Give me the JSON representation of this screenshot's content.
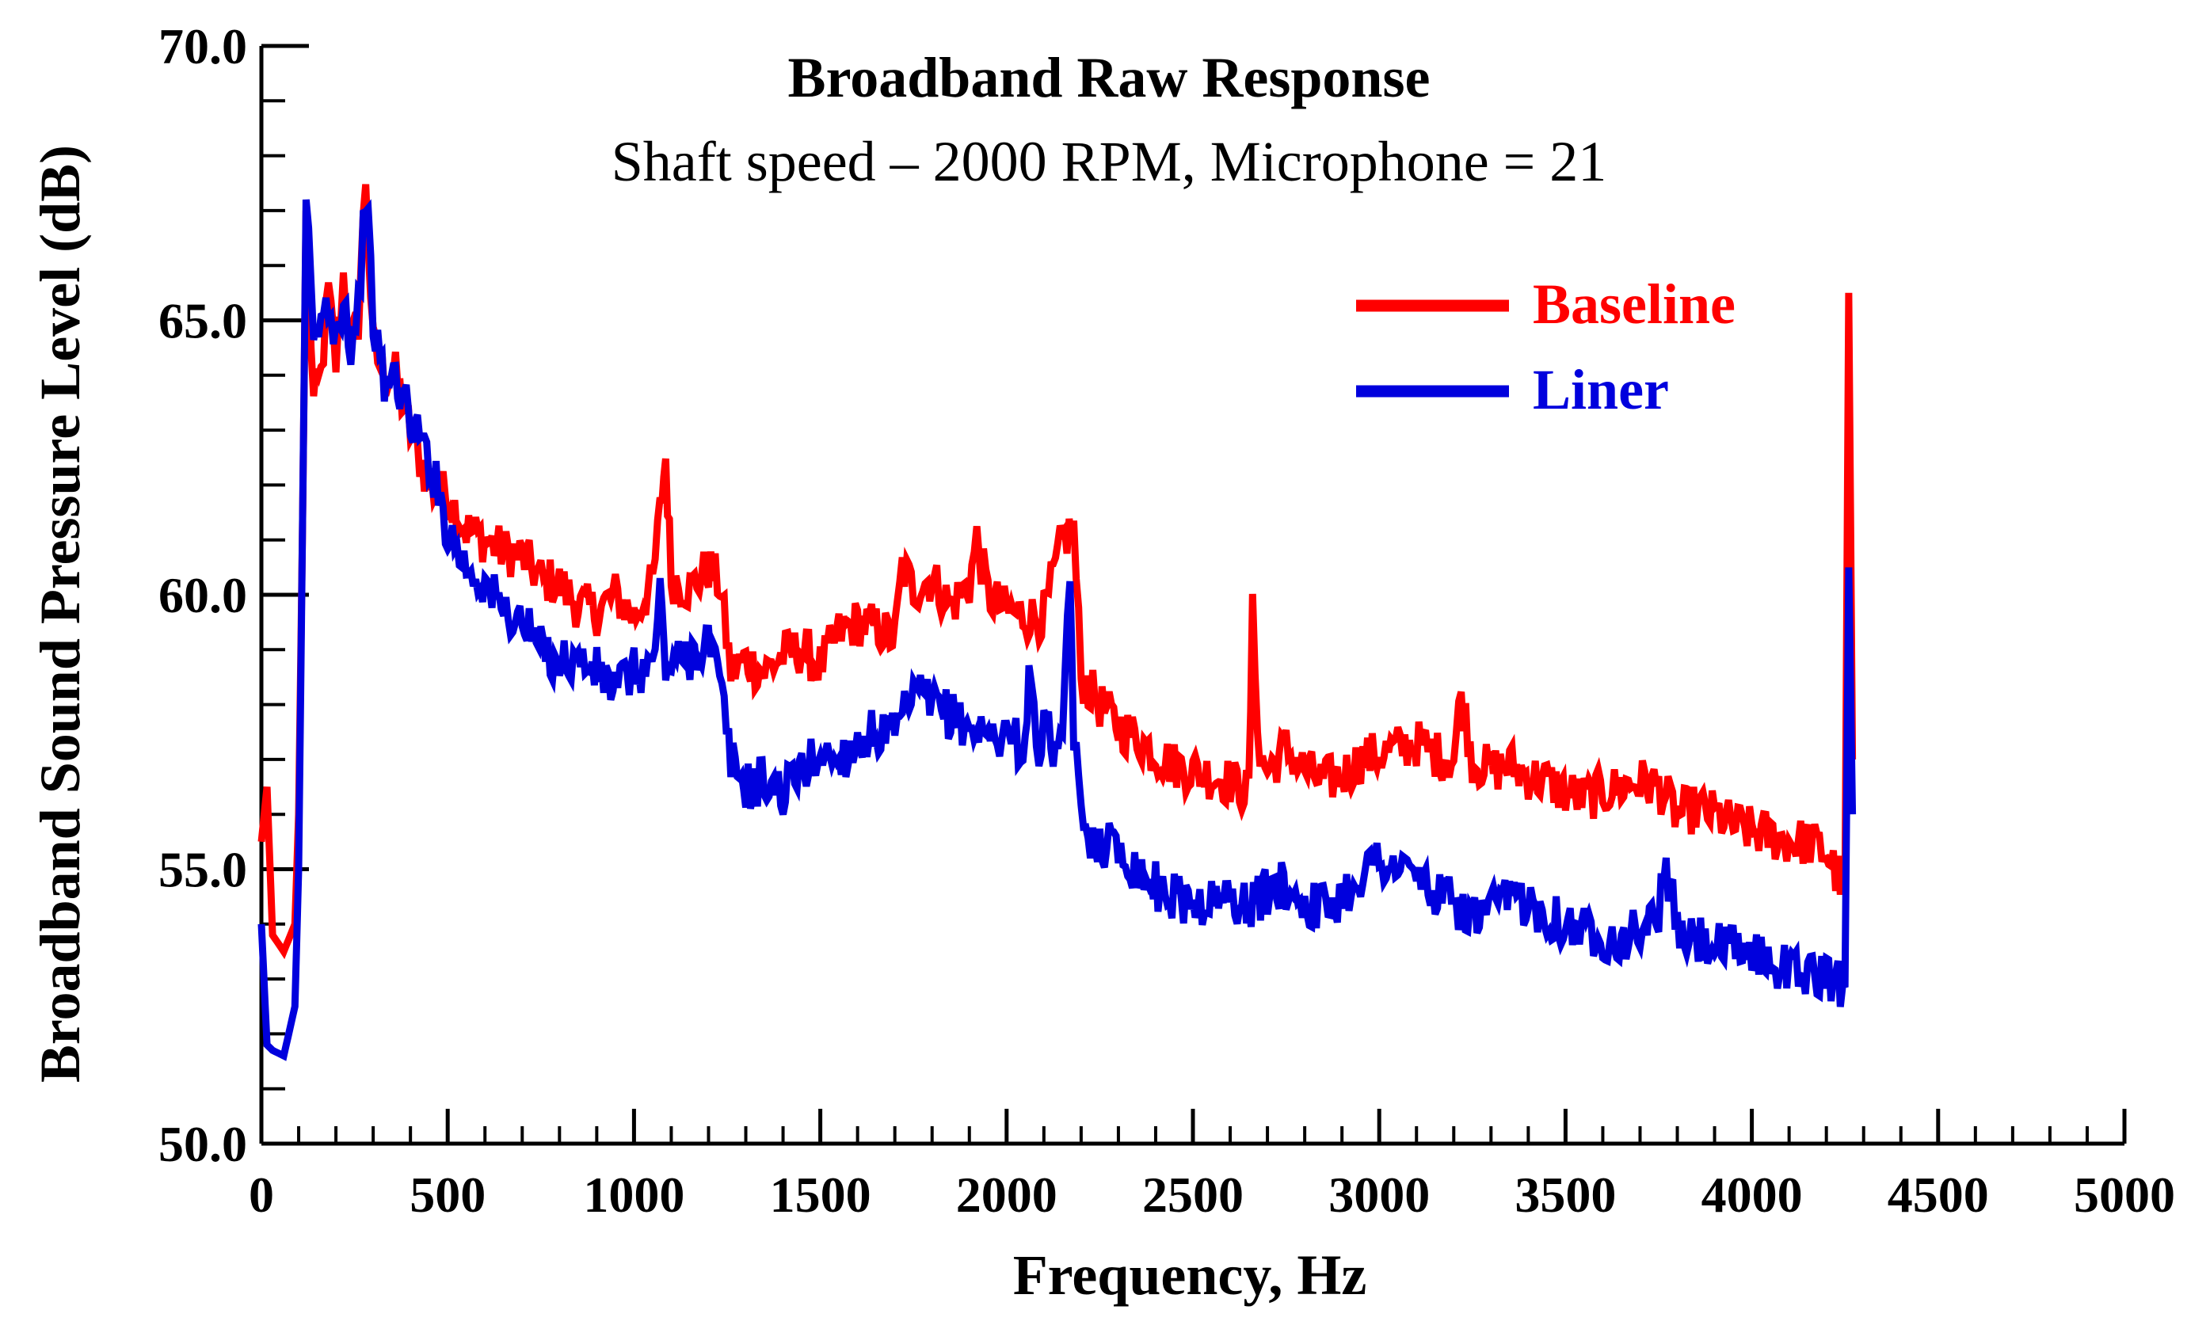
{
  "chart_data": {
    "type": "line",
    "title": "Broadband Raw Response",
    "subtitle": "Shaft speed – 2000 RPM, Microphone = 21",
    "xlabel": "Frequency, Hz",
    "ylabel": "Broadband Sound Pressure Level (dB)",
    "xlim": [
      0,
      5000
    ],
    "ylim": [
      50,
      70
    ],
    "x_ticks": [
      "0",
      "500",
      "1000",
      "1500",
      "2000",
      "2500",
      "3000",
      "3500",
      "4000",
      "4500",
      "5000"
    ],
    "y_ticks": [
      "50.0",
      "55.0",
      "60.0",
      "65.0",
      "70.0"
    ],
    "legend_position": "top-right",
    "series": [
      {
        "name": "Baseline",
        "color": "#ff0000",
        "x": [
          0,
          15,
          30,
          60,
          90,
          100,
          110,
          120,
          140,
          160,
          180,
          200,
          220,
          240,
          260,
          280,
          300,
          330,
          360,
          400,
          450,
          500,
          550,
          600,
          650,
          700,
          750,
          800,
          850,
          900,
          950,
          1000,
          1050,
          1070,
          1085,
          1100,
          1150,
          1200,
          1230,
          1260,
          1300,
          1350,
          1400,
          1450,
          1500,
          1550,
          1600,
          1650,
          1700,
          1720,
          1750,
          1800,
          1850,
          1900,
          1920,
          1950,
          2000,
          2050,
          2100,
          2150,
          2180,
          2200,
          2250,
          2300,
          2350,
          2400,
          2450,
          2500,
          2550,
          2600,
          2650,
          2660,
          2680,
          2700,
          2750,
          2800,
          2850,
          2900,
          2950,
          3000,
          3050,
          3100,
          3150,
          3200,
          3220,
          3250,
          3300,
          3350,
          3400,
          3450,
          3500,
          3550,
          3600,
          3650,
          3700,
          3750,
          3800,
          3850,
          3900,
          3950,
          4000,
          4050,
          4100,
          4150,
          4200,
          4250,
          4260,
          4270
        ],
        "y": [
          55.5,
          56.5,
          53.8,
          53.5,
          54.0,
          56.0,
          61.0,
          67.0,
          63.5,
          64.0,
          65.5,
          64.2,
          65.8,
          64.5,
          65.0,
          67.6,
          64.5,
          64.0,
          64.0,
          63.0,
          62.0,
          61.8,
          61.2,
          61.0,
          60.8,
          60.7,
          60.3,
          60.2,
          59.8,
          59.7,
          60.0,
          59.6,
          60.2,
          61.5,
          62.5,
          60.3,
          60.1,
          60.5,
          60.2,
          58.6,
          58.8,
          58.6,
          58.9,
          59.0,
          58.7,
          59.3,
          59.5,
          59.4,
          59.2,
          60.5,
          60.1,
          60.3,
          59.8,
          60.2,
          61.0,
          60.0,
          59.7,
          59.6,
          59.6,
          61.0,
          61.2,
          58.5,
          58.0,
          57.6,
          57.4,
          57.1,
          56.9,
          56.8,
          56.7,
          56.6,
          56.4,
          59.6,
          57.0,
          56.8,
          57.2,
          56.8,
          56.6,
          56.7,
          57.0,
          57.1,
          57.2,
          57.3,
          57.1,
          57.0,
          58.2,
          57.0,
          56.8,
          56.9,
          56.7,
          56.6,
          56.4,
          56.3,
          56.4,
          56.5,
          56.6,
          56.5,
          56.0,
          56.1,
          56.0,
          55.8,
          55.7,
          55.6,
          55.5,
          55.5,
          55.3,
          54.6,
          65.5,
          57.0
        ]
      },
      {
        "name": "Liner",
        "color": "#0000dd",
        "x": [
          0,
          15,
          30,
          60,
          90,
          100,
          110,
          120,
          140,
          160,
          180,
          200,
          220,
          240,
          260,
          280,
          300,
          330,
          360,
          400,
          450,
          500,
          550,
          600,
          650,
          700,
          750,
          800,
          850,
          900,
          950,
          1000,
          1050,
          1070,
          1085,
          1100,
          1150,
          1200,
          1230,
          1260,
          1300,
          1350,
          1400,
          1450,
          1500,
          1550,
          1600,
          1650,
          1700,
          1720,
          1750,
          1800,
          1850,
          1900,
          1950,
          2000,
          2050,
          2060,
          2080,
          2100,
          2150,
          2170,
          2180,
          2200,
          2250,
          2300,
          2350,
          2400,
          2450,
          2500,
          2550,
          2600,
          2650,
          2700,
          2750,
          2800,
          2850,
          2900,
          2950,
          3000,
          3050,
          3100,
          3150,
          3200,
          3250,
          3300,
          3350,
          3400,
          3450,
          3500,
          3550,
          3600,
          3650,
          3700,
          3750,
          3770,
          3800,
          3850,
          3900,
          3950,
          4000,
          4050,
          4100,
          4150,
          4200,
          4250,
          4260,
          4270
        ],
        "y": [
          54.0,
          51.8,
          51.7,
          51.6,
          52.5,
          55.0,
          61.0,
          67.2,
          64.5,
          65.0,
          65.3,
          64.8,
          65.5,
          64.5,
          65.2,
          67.4,
          65.0,
          63.8,
          64.0,
          63.2,
          62.5,
          61.2,
          60.5,
          60.2,
          59.7,
          59.5,
          59.0,
          58.8,
          58.8,
          58.6,
          58.3,
          58.6,
          58.7,
          60.0,
          58.7,
          58.7,
          58.9,
          59.2,
          58.4,
          57.0,
          56.5,
          56.6,
          56.4,
          56.8,
          57.1,
          57.0,
          57.3,
          57.5,
          57.4,
          57.7,
          58.2,
          58.0,
          57.8,
          57.6,
          57.4,
          57.5,
          57.2,
          58.9,
          57.0,
          57.6,
          57.0,
          60.5,
          57.5,
          55.8,
          55.5,
          55.4,
          55.0,
          54.7,
          54.5,
          54.4,
          54.4,
          54.5,
          54.3,
          54.6,
          54.7,
          54.4,
          54.3,
          54.5,
          54.9,
          55.2,
          55.0,
          54.9,
          54.5,
          54.4,
          54.1,
          54.2,
          54.5,
          54.4,
          54.2,
          54.0,
          53.9,
          53.8,
          53.7,
          53.9,
          54.2,
          55.1,
          53.8,
          53.7,
          53.6,
          53.5,
          53.5,
          53.3,
          53.2,
          53.1,
          53.0,
          52.9,
          60.5,
          56.0
        ]
      }
    ]
  }
}
